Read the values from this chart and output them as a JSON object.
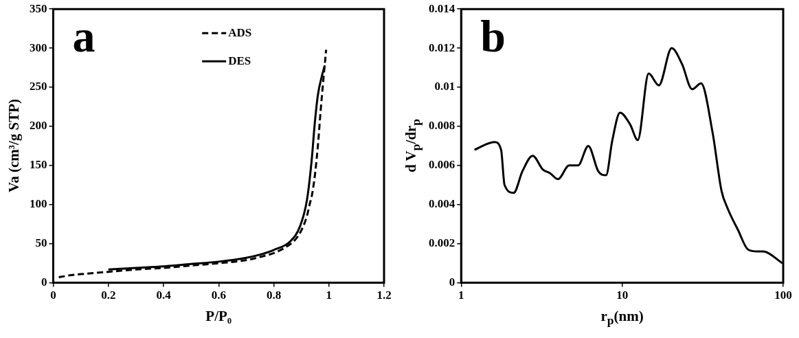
{
  "chart_data": [
    {
      "type": "line",
      "title": "a",
      "xlabel": "P/P₀",
      "ylabel": "Va (cm³/g STP)",
      "xlim": [
        0,
        1.2
      ],
      "xticks": [
        0,
        0.2,
        0.4,
        0.6,
        0.8,
        1,
        1.2
      ],
      "ylim": [
        0,
        350
      ],
      "yticks": [
        0,
        50,
        100,
        150,
        200,
        250,
        300,
        350
      ],
      "grid": false,
      "legend": "top",
      "marker": "none",
      "series": [
        {
          "name": "ADS",
          "color": "#000000",
          "line_style": "dashed",
          "x": [
            0.02,
            0.05,
            0.1,
            0.2,
            0.3,
            0.4,
            0.5,
            0.6,
            0.7,
            0.75,
            0.8,
            0.85,
            0.88,
            0.9,
            0.92,
            0.93,
            0.94,
            0.95,
            0.96,
            0.97,
            0.98,
            0.99
          ],
          "values": [
            7,
            9,
            11,
            14,
            17,
            19,
            22,
            25,
            29,
            33,
            38,
            47,
            56,
            67,
            85,
            100,
            115,
            140,
            175,
            220,
            260,
            298
          ]
        },
        {
          "name": "DES",
          "color": "#000000",
          "line_style": "solid",
          "x": [
            0.2,
            0.3,
            0.4,
            0.5,
            0.6,
            0.7,
            0.75,
            0.8,
            0.86,
            0.895,
            0.92,
            0.937,
            0.949,
            0.96,
            0.975,
            0.985
          ],
          "values": [
            17,
            19,
            21,
            24,
            27,
            32,
            36,
            42,
            53,
            72,
            105,
            155,
            205,
            240,
            265,
            278
          ]
        }
      ]
    },
    {
      "type": "line",
      "title": "b",
      "xlabel": "r$_{p}$(nm)",
      "ylabel": "d V$_{p}$/dr$_{p}$",
      "log": "x",
      "xlim": [
        1,
        100
      ],
      "xticks": [
        1,
        10,
        100
      ],
      "ylim": [
        0,
        0.014
      ],
      "yticks": [
        0,
        0.002,
        0.004,
        0.006,
        0.008,
        0.01,
        0.012,
        0.014
      ],
      "grid": false,
      "legend": false,
      "marker": "none",
      "series": [
        {
          "color": "#000000",
          "line_style": "solid",
          "x": [
            1.21,
            1.61,
            1.77,
            1.86,
            2.12,
            2.4,
            2.78,
            3.21,
            3.57,
            3.99,
            4.69,
            5.32,
            6.16,
            7.11,
            7.94,
            8.69,
            9.69,
            11.2,
            12.5,
            14.6,
            16.9,
            20.3,
            23.5,
            27.2,
            30.9,
            36.4,
            41.4,
            45.2,
            52.4,
            60.5,
            69.6,
            74.9,
            99
          ],
          "values": [
            0.0068,
            0.0072,
            0.0068,
            0.005,
            0.0046,
            0.0057,
            0.0065,
            0.0058,
            0.0056,
            0.0053,
            0.006,
            0.006,
            0.007,
            0.0057,
            0.0055,
            0.0073,
            0.0087,
            0.0081,
            0.0073,
            0.0107,
            0.0101,
            0.012,
            0.0112,
            0.0099,
            0.0102,
            0.0077,
            0.0047,
            0.0038,
            0.0027,
            0.0017,
            0.0016,
            0.0016,
            0.001
          ]
        }
      ]
    }
  ]
}
